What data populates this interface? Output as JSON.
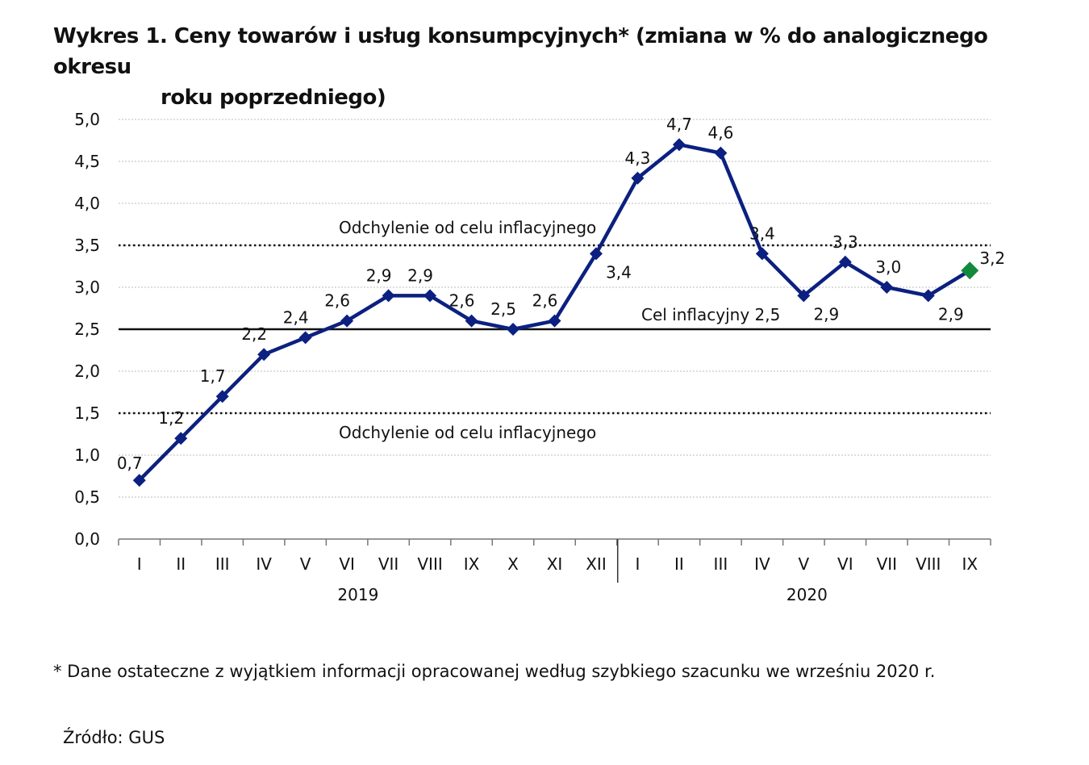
{
  "title_line1": "Wykres 1. Ceny towarów i usług konsumpcyjnych* (zmiana w % do analogicznego okresu",
  "title_line2": "roku poprzedniego)",
  "footnote": "* Dane ostateczne z wyjątkiem informacji opracowanej według szybkiego szacunku we wrześniu 2020 r.",
  "source": "Źródło: GUS",
  "chart_data": {
    "type": "line",
    "title": "Wykres 1. Ceny towarów i usług konsumpcyjnych* (zmiana w % do analogicznego okresu roku poprzedniego)",
    "categories": [
      "I",
      "II",
      "III",
      "IV",
      "V",
      "VI",
      "VII",
      "VIII",
      "IX",
      "X",
      "XI",
      "XII",
      "I",
      "II",
      "III",
      "IV",
      "V",
      "VI",
      "VII",
      "VIII",
      "IX"
    ],
    "year_groups": [
      {
        "label": "2019",
        "count": 12
      },
      {
        "label": "2020",
        "count": 9
      }
    ],
    "values": [
      0.7,
      1.2,
      1.7,
      2.2,
      2.4,
      2.6,
      2.9,
      2.9,
      2.6,
      2.5,
      2.6,
      3.4,
      4.3,
      4.7,
      4.6,
      3.4,
      2.9,
      3.3,
      3.0,
      2.9,
      3.2
    ],
    "data_labels": [
      "0,7",
      "1,2",
      "1,7",
      "2,2",
      "2,4",
      "2,6",
      "2,9",
      "2,9",
      "2,6",
      "2,5",
      "2,6",
      "3,4",
      "4,3",
      "4,7",
      "4,6",
      "3,4",
      "2,9",
      "3,3",
      "3,0",
      "2,9",
      "3,2"
    ],
    "ylim": [
      0,
      5
    ],
    "yticks": [
      "0,0",
      "0,5",
      "1,0",
      "1,5",
      "2,0",
      "2,5",
      "3,0",
      "3,5",
      "4,0",
      "4,5",
      "5,0"
    ],
    "grid": true,
    "reference_lines": [
      {
        "value": 2.5,
        "label": "Cel inflacyjny 2,5",
        "style": "solid"
      },
      {
        "value": 3.5,
        "label": "Odchylenie od celu inflacyjnego",
        "style": "dotted"
      },
      {
        "value": 1.5,
        "label": "Odchylenie od celu inflacyjnego",
        "style": "dotted"
      }
    ],
    "line_color": "#0b2080",
    "highlight_last_color": "#13893e"
  }
}
